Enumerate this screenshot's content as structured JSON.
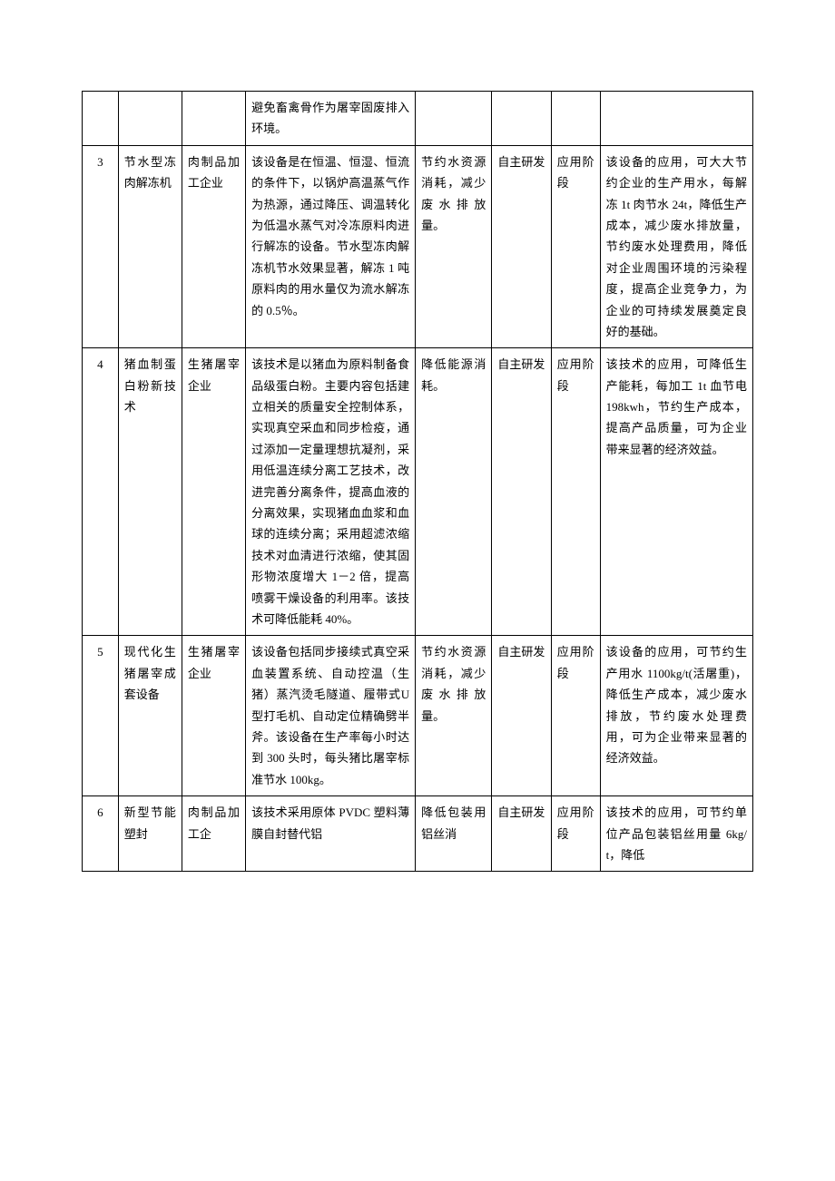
{
  "table": {
    "rows": [
      {
        "num": "",
        "name": "",
        "scope": "",
        "desc": "避免畜禽骨作为屠宰固废排入环境。",
        "reason": "",
        "source": "",
        "stage": "",
        "benefit": ""
      },
      {
        "num": "3",
        "name": "节水型冻肉解冻机",
        "scope": "肉制品加工企业",
        "desc": "该设备是在恒温、恒湿、恒流的条件下，以锅炉高温蒸气作为热源，通过降压、调温转化为低温水蒸气对冷冻原料肉进行解冻的设备。节水型冻肉解冻机节水效果显著，解冻 1 吨原料肉的用水量仅为流水解冻的 0.5％。",
        "reason": "节约水资源消耗，减少废水排放量。",
        "source": "自主研发",
        "stage": "应用阶段",
        "benefit": "该设备的应用，可大大节约企业的生产用水，每解冻 1t 肉节水 24t，降低生产成本，减少废水排放量，节约废水处理费用，降低对企业周围环境的污染程度，提高企业竞争力，为企业的可持续发展奠定良好的基础。"
      },
      {
        "num": "4",
        "name": "猪血制蛋白粉新技术",
        "scope": "生猪屠宰企业",
        "desc": "该技术是以猪血为原料制备食品级蛋白粉。主要内容包括建立相关的质量安全控制体系，实现真空采血和同步检疫，通过添加一定量理想抗凝剂，采用低温连续分离工艺技术，改进完善分离条件，提高血液的分离效果，实现猪血血浆和血球的连续分离；采用超滤浓缩技术对血清进行浓缩，使其固形物浓度增大 1－2 倍，提高喷雾干燥设备的利用率。该技术可降低能耗 40%。",
        "reason": "降低能源消耗。",
        "source": "自主研发",
        "stage": "应用阶段",
        "benefit": "该技术的应用，可降低生产能耗，每加工 1t 血节电 198kwh，节约生产成本，提高产品质量，可为企业带来显著的经济效益。"
      },
      {
        "num": "5",
        "name": "现代化生猪屠宰成套设备",
        "scope": "生猪屠宰企业",
        "desc": "该设备包括同步接续式真空采血装置系统、自动控温（生猪）蒸汽烫毛隧道、履带式U型打毛机、自动定位精确劈半斧。该设备在生产率每小时达到 300 头时，每头猪比屠宰标准节水 100kg。",
        "reason": "节约水资源消耗，减少废水排放量。",
        "source": "自主研发",
        "stage": "应用阶段",
        "benefit": "该设备的应用，可节约生产用水 1100kg/t(活屠重)，降低生产成本，减少废水排放，节约废水处理费用，可为企业带来显著的经济效益。"
      },
      {
        "num": "6",
        "name": "新型节能塑封",
        "scope": "肉制品加工企",
        "desc": "该技术采用原体 PVDC 塑料薄膜自封替代铝",
        "reason": "降低包装用铝丝消",
        "source": "自主研发",
        "stage": "应用阶段",
        "benefit": "该技术的应用，可节约单位产品包装铝丝用量 6kg/t，降低"
      }
    ]
  }
}
